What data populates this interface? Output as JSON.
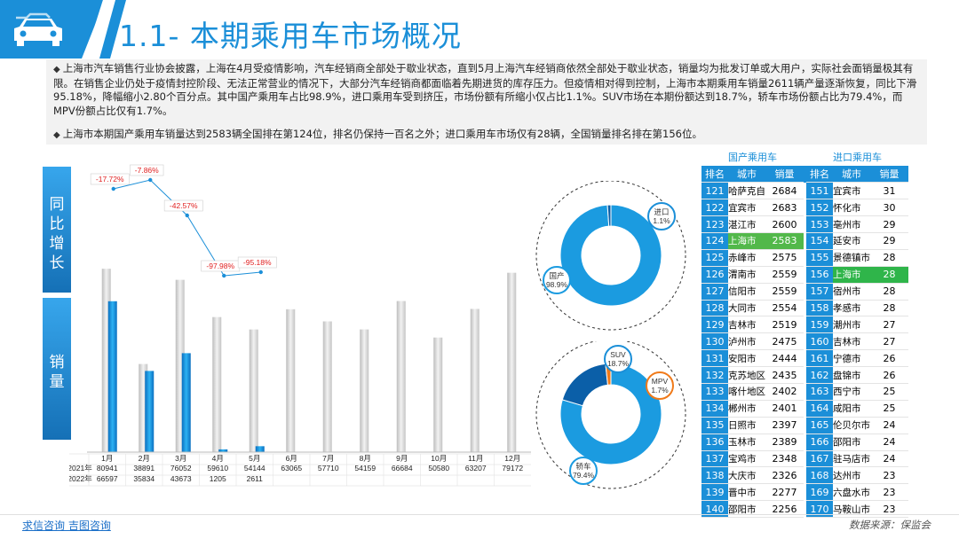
{
  "header": {
    "title": "1.1- 本期乘用车市场概况"
  },
  "paragraphs": {
    "p1": "上海市汽车销售行业协会披露，上海在4月受疫情影响，汽车经销商全部处于歇业状态，直到5月上海汽车经销商依然全部处于歇业状态，销量均为批发订单或大用户，实际社会面销量极其有限。在销售企业仍处于疫情封控阶段、无法正常营业的情况下，大部分汽车经销商都面临着先期进货的库存压力。但疫情相对得到控制，上海市本期乘用车销量2611辆产量逐渐恢复，同比下滑95.18%，降幅缩小2.80个百分点。其中国产乘用车占比98.9%，进口乘用车受到挤压，市场份额有所缩小仅占比1.1%。SUV市场在本期份额达到18.7%，轿车市场份额占比为79.4%，而MPV份额占比仅有1.7%。",
    "p2": "上海市本期国产乘用车销量达到2583辆全国排在第124位，排名仍保持一百名之外；进口乘用车市场仅有28辆，全国销量排名排在第156位。",
    "bullet": "◆"
  },
  "side_labels": {
    "yoy": "同比增长",
    "sales": "销量"
  },
  "chart_data": {
    "type": "bar",
    "categories": [
      "1月",
      "2月",
      "3月",
      "4月",
      "5月",
      "6月",
      "7月",
      "8月",
      "9月",
      "10月",
      "11月",
      "12月"
    ],
    "series": [
      {
        "name": "2021年",
        "values": [
          80941,
          38891,
          76052,
          59610,
          54144,
          63065,
          57710,
          54159,
          66684,
          50580,
          63207,
          79172
        ]
      },
      {
        "name": "2022年",
        "values": [
          66597,
          35834,
          43673,
          1205,
          2611,
          null,
          null,
          null,
          null,
          null,
          null,
          null
        ]
      }
    ],
    "series_labels": [
      "2021年",
      "2022年"
    ],
    "table_values": {
      "y2021": [
        "80941",
        "38891",
        "76052",
        "59610",
        "54144",
        "63065",
        "57710",
        "54159",
        "66684",
        "50580",
        "63207",
        "79172"
      ],
      "y2022": [
        "66597",
        "35834",
        "43673",
        "1205",
        "2611",
        "",
        "",
        "",
        "",
        "",
        "",
        ""
      ]
    },
    "yoy": {
      "values": [
        -17.72,
        -7.86,
        -42.57,
        -97.98,
        -95.18
      ],
      "labels": [
        "-17.72%",
        "-7.86%",
        "-42.57%",
        "-97.98%",
        "-95.18%"
      ]
    },
    "ylim": [
      0,
      90000
    ]
  },
  "donut_origin": {
    "segments": [
      {
        "name": "国产",
        "label": "国产",
        "pct_label": "98.9%",
        "value": 98.9,
        "color": "#1b9be0"
      },
      {
        "name": "进口",
        "label": "进口",
        "pct_label": "1.1%",
        "value": 1.1,
        "color": "#0b5fa8"
      }
    ]
  },
  "donut_type": {
    "segments": [
      {
        "name": "轿车",
        "label": "轿车",
        "pct_label": "79.4%",
        "value": 79.4,
        "color": "#1b9be0"
      },
      {
        "name": "SUV",
        "label": "SUV",
        "pct_label": "18.7%",
        "value": 18.7,
        "color": "#0b5fa8"
      },
      {
        "name": "MPV",
        "label": "MPV",
        "pct_label": "1.7%",
        "value": 1.7,
        "color": "#f07a1a"
      }
    ]
  },
  "ranking": {
    "domestic_caption": "国产乘用车",
    "import_caption": "进口乘用车",
    "headers": {
      "rank": "排名",
      "city": "城市",
      "sales": "销量"
    },
    "rows": [
      {
        "d_rank": "121",
        "d_city": "哈萨克自",
        "d_sales": "2684",
        "i_rank": "151",
        "i_city": "宜宾市",
        "i_sales": "31"
      },
      {
        "d_rank": "122",
        "d_city": "宜宾市",
        "d_sales": "2683",
        "i_rank": "152",
        "i_city": "怀化市",
        "i_sales": "30"
      },
      {
        "d_rank": "123",
        "d_city": "湛江市",
        "d_sales": "2600",
        "i_rank": "153",
        "i_city": "亳州市",
        "i_sales": "29"
      },
      {
        "d_rank": "124",
        "d_city": "上海市",
        "d_sales": "2583",
        "i_rank": "154",
        "i_city": "延安市",
        "i_sales": "29"
      },
      {
        "d_rank": "125",
        "d_city": "赤峰市",
        "d_sales": "2575",
        "i_rank": "155",
        "i_city": "景德镇市",
        "i_sales": "28"
      },
      {
        "d_rank": "126",
        "d_city": "渭南市",
        "d_sales": "2559",
        "i_rank": "156",
        "i_city": "上海市",
        "i_sales": "28"
      },
      {
        "d_rank": "127",
        "d_city": "信阳市",
        "d_sales": "2559",
        "i_rank": "157",
        "i_city": "宿州市",
        "i_sales": "28"
      },
      {
        "d_rank": "128",
        "d_city": "大同市",
        "d_sales": "2554",
        "i_rank": "158",
        "i_city": "孝感市",
        "i_sales": "28"
      },
      {
        "d_rank": "129",
        "d_city": "吉林市",
        "d_sales": "2519",
        "i_rank": "159",
        "i_city": "潮州市",
        "i_sales": "27"
      },
      {
        "d_rank": "130",
        "d_city": "泸州市",
        "d_sales": "2475",
        "i_rank": "160",
        "i_city": "吉林市",
        "i_sales": "27"
      },
      {
        "d_rank": "131",
        "d_city": "安阳市",
        "d_sales": "2444",
        "i_rank": "161",
        "i_city": "宁德市",
        "i_sales": "26"
      },
      {
        "d_rank": "132",
        "d_city": "克苏地区",
        "d_sales": "2435",
        "i_rank": "162",
        "i_city": "盘锦市",
        "i_sales": "26"
      },
      {
        "d_rank": "133",
        "d_city": "喀什地区",
        "d_sales": "2402",
        "i_rank": "163",
        "i_city": "西宁市",
        "i_sales": "25"
      },
      {
        "d_rank": "134",
        "d_city": "郴州市",
        "d_sales": "2401",
        "i_rank": "164",
        "i_city": "咸阳市",
        "i_sales": "25"
      },
      {
        "d_rank": "135",
        "d_city": "日照市",
        "d_sales": "2397",
        "i_rank": "165",
        "i_city": "伦贝尔市",
        "i_sales": "24"
      },
      {
        "d_rank": "136",
        "d_city": "玉林市",
        "d_sales": "2389",
        "i_rank": "166",
        "i_city": "邵阳市",
        "i_sales": "24"
      },
      {
        "d_rank": "137",
        "d_city": "宝鸡市",
        "d_sales": "2348",
        "i_rank": "167",
        "i_city": "驻马店市",
        "i_sales": "24"
      },
      {
        "d_rank": "138",
        "d_city": "大庆市",
        "d_sales": "2326",
        "i_rank": "168",
        "i_city": "达州市",
        "i_sales": "23"
      },
      {
        "d_rank": "139",
        "d_city": "晋中市",
        "d_sales": "2277",
        "i_rank": "169",
        "i_city": "六盘水市",
        "i_sales": "23"
      },
      {
        "d_rank": "140",
        "d_city": "邵阳市",
        "d_sales": "2256",
        "i_rank": "170",
        "i_city": "马鞍山市",
        "i_sales": "23"
      }
    ]
  },
  "footer": {
    "links": "求信咨询  吉图咨询",
    "source": "数据来源：保监会"
  },
  "colors": {
    "accent": "#1b8fd8",
    "bar2021": "#d9d9d9",
    "bar2022": "#1b9be0",
    "highlight": "#2fb54a",
    "yoy_line": "#1b8fd8",
    "yoy_label": "#e02020"
  }
}
